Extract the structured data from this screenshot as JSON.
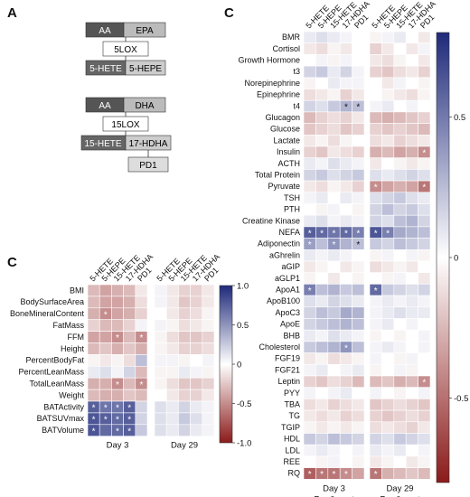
{
  "panel_labels": {
    "a": "A",
    "c_left": "C",
    "c_right": "C"
  },
  "pathways": {
    "lox5": {
      "inputs": [
        "AA",
        "EPA"
      ],
      "enzyme": "5LOX",
      "products": [
        "5-HETE",
        "5-HEPE"
      ]
    },
    "lox15": {
      "inputs": [
        "AA",
        "DHA"
      ],
      "enzyme": "15LOX",
      "products": [
        "15-HETE",
        "17-HDHA"
      ],
      "downstream": "PD1"
    }
  },
  "chart_data": [
    {
      "type": "heatmap",
      "columns": [
        "5-HETE",
        "5-HEPE",
        "15-HETE",
        "17-HDHA",
        "PD1",
        "5-HETE",
        "5-HEPE",
        "15-HETE",
        "17-HDHA",
        "PD1"
      ],
      "column_groups": [
        {
          "label": "Day 3",
          "span": 5
        },
        {
          "label": "Day 29",
          "span": 5
        }
      ],
      "rows": [
        "BMI",
        "BodySurfaceArea",
        "BoneMineralContent",
        "FatMass",
        "FFM",
        "Height",
        "PercentBodyFat",
        "PercentLeanMass",
        "TotalLeanMass",
        "Weight",
        "BATActivity",
        "BATSUVmax",
        "BATVolume"
      ],
      "values": [
        [
          -0.3,
          -0.4,
          -0.35,
          -0.3,
          -0.1,
          0.05,
          -0.1,
          -0.2,
          -0.2,
          -0.1
        ],
        [
          -0.3,
          -0.4,
          -0.4,
          -0.35,
          -0.15,
          0.05,
          -0.1,
          -0.25,
          -0.2,
          -0.1
        ],
        [
          -0.35,
          -0.5,
          -0.4,
          -0.35,
          -0.2,
          0.0,
          -0.1,
          -0.2,
          -0.15,
          -0.05
        ],
        [
          -0.2,
          -0.3,
          -0.3,
          -0.2,
          0.05,
          0.05,
          -0.05,
          -0.15,
          -0.1,
          -0.05
        ],
        [
          -0.4,
          -0.4,
          -0.5,
          -0.3,
          -0.5,
          -0.05,
          -0.15,
          -0.25,
          -0.25,
          -0.2
        ],
        [
          -0.3,
          -0.25,
          -0.35,
          -0.25,
          -0.35,
          -0.05,
          -0.1,
          -0.2,
          -0.2,
          -0.15
        ],
        [
          -0.05,
          -0.1,
          -0.05,
          -0.15,
          0.3,
          0.05,
          0.05,
          -0.05,
          0.0,
          0.05
        ],
        [
          0.1,
          0.15,
          0.05,
          0.2,
          -0.3,
          -0.05,
          -0.05,
          0.1,
          0.05,
          -0.05
        ],
        [
          -0.35,
          -0.35,
          -0.5,
          -0.3,
          -0.5,
          -0.05,
          -0.15,
          -0.25,
          -0.25,
          -0.2
        ],
        [
          -0.3,
          -0.35,
          -0.35,
          -0.25,
          -0.3,
          0.0,
          -0.1,
          -0.2,
          -0.2,
          -0.1
        ],
        [
          0.75,
          0.65,
          0.65,
          0.75,
          0.2,
          0.15,
          0.1,
          0.2,
          0.1,
          0.05
        ],
        [
          0.8,
          0.75,
          0.7,
          0.75,
          0.2,
          0.15,
          0.1,
          0.25,
          0.15,
          0.05
        ],
        [
          0.8,
          0.7,
          0.7,
          0.75,
          0.25,
          0.15,
          0.1,
          0.2,
          0.1,
          0.05
        ]
      ],
      "significant": [
        [
          2,
          1
        ],
        [
          4,
          2
        ],
        [
          4,
          4
        ],
        [
          8,
          2
        ],
        [
          8,
          4
        ],
        [
          10,
          0
        ],
        [
          10,
          1
        ],
        [
          10,
          2
        ],
        [
          10,
          3
        ],
        [
          11,
          0
        ],
        [
          11,
          1
        ],
        [
          11,
          2
        ],
        [
          11,
          3
        ],
        [
          12,
          0
        ],
        [
          12,
          2
        ],
        [
          12,
          3
        ]
      ],
      "significance_marker": "*",
      "colorbar": {
        "min": -1.0,
        "max": 1.0,
        "ticks": [
          "1.0",
          "0.5",
          "0",
          "-0.5",
          "-1.0"
        ]
      },
      "color_scale": {
        "negative": "#8b1a1a",
        "zero": "#ffffff",
        "positive": "#1f2a7a"
      }
    },
    {
      "type": "heatmap",
      "columns": [
        "5-HETE",
        "5-HEPE",
        "15-HETE",
        "17-HDHA",
        "PD1",
        "5-HETE",
        "5-HEPE",
        "15-HETE",
        "17-HDHA",
        "PD1"
      ],
      "column_groups": [
        {
          "label": "Day 3",
          "sublabel": "Pre & post",
          "span": 5
        },
        {
          "label": "Day 29",
          "sublabel": "Pre & post",
          "span": 5
        }
      ],
      "rows": [
        "BMR",
        "Cortisol",
        "Growth Hormone",
        "t3",
        "Norepinephrine",
        "Epinephrine",
        "t4",
        "Glucagon",
        "Glucose",
        "Lactate",
        "Insulin",
        "ACTH",
        "Total Protein",
        "Pyruvate",
        "TSH",
        "PTH",
        "Creatine Kinase",
        "NEFA",
        "Adiponectin",
        "aGhrelin",
        "aGIP",
        "aGLP1",
        "ApoA1",
        "ApoB100",
        "ApoC3",
        "ApoE",
        "BHB",
        "Cholesterol",
        "FGF19",
        "FGF21",
        "Leptin",
        "PYY",
        "TBA",
        "TG",
        "TGIP",
        "HDL",
        "LDL",
        "REE",
        "RQ"
      ],
      "values": [
        [
          0.1,
          0.15,
          0.1,
          0.05,
          0.0,
          -0.05,
          0.05,
          0.1,
          0.0,
          -0.1
        ],
        [
          -0.1,
          -0.15,
          -0.05,
          -0.1,
          0.0,
          -0.2,
          -0.1,
          0.0,
          -0.1,
          0.05
        ],
        [
          0.0,
          0.05,
          -0.05,
          0.05,
          0.0,
          -0.1,
          -0.15,
          -0.05,
          0.0,
          -0.1
        ],
        [
          0.2,
          0.25,
          0.1,
          0.2,
          0.05,
          -0.2,
          -0.25,
          -0.15,
          -0.1,
          -0.2
        ],
        [
          -0.05,
          0.0,
          0.1,
          0.05,
          0.05,
          0.0,
          -0.1,
          0.05,
          0.0,
          -0.05
        ],
        [
          -0.15,
          -0.1,
          -0.05,
          -0.2,
          -0.1,
          0.0,
          -0.05,
          -0.1,
          -0.15,
          -0.05
        ],
        [
          0.2,
          0.15,
          0.25,
          0.35,
          0.3,
          0.05,
          0.1,
          0.0,
          0.05,
          0.0
        ],
        [
          -0.3,
          -0.2,
          -0.15,
          -0.2,
          -0.1,
          -0.3,
          -0.35,
          -0.3,
          -0.25,
          -0.2
        ],
        [
          -0.25,
          -0.2,
          -0.15,
          -0.25,
          -0.2,
          -0.2,
          -0.25,
          -0.2,
          -0.25,
          -0.3
        ],
        [
          -0.1,
          -0.05,
          -0.15,
          -0.05,
          0.0,
          -0.15,
          -0.1,
          -0.2,
          -0.15,
          -0.1
        ],
        [
          -0.2,
          -0.25,
          -0.1,
          -0.15,
          -0.2,
          -0.35,
          -0.3,
          -0.4,
          -0.35,
          -0.5
        ],
        [
          0.1,
          0.05,
          0.15,
          0.1,
          0.05,
          -0.1,
          0.0,
          -0.05,
          -0.1,
          -0.05
        ],
        [
          0.2,
          0.25,
          0.15,
          0.2,
          0.25,
          0.15,
          0.1,
          0.15,
          0.2,
          0.15
        ],
        [
          -0.1,
          -0.15,
          -0.05,
          -0.1,
          -0.2,
          -0.5,
          -0.4,
          -0.35,
          -0.4,
          -0.6
        ],
        [
          0.05,
          0.1,
          0.0,
          0.1,
          0.05,
          0.15,
          0.2,
          0.25,
          0.15,
          0.1
        ],
        [
          0.0,
          -0.05,
          0.05,
          0.0,
          -0.05,
          0.2,
          0.3,
          0.2,
          0.25,
          0.15
        ],
        [
          0.1,
          0.15,
          0.05,
          0.1,
          0.05,
          0.2,
          0.15,
          0.3,
          0.35,
          0.2
        ],
        [
          0.75,
          0.7,
          0.65,
          0.7,
          0.6,
          0.8,
          0.6,
          0.4,
          0.35,
          0.3
        ],
        [
          0.45,
          0.3,
          0.5,
          0.35,
          0.3,
          0.25,
          0.2,
          0.3,
          0.25,
          0.2
        ],
        [
          0.1,
          0.05,
          0.1,
          0.05,
          0.0,
          -0.05,
          0.05,
          0.0,
          0.05,
          -0.05
        ],
        [
          -0.1,
          -0.05,
          0.0,
          -0.1,
          -0.05,
          -0.15,
          -0.1,
          -0.05,
          -0.1,
          0.0
        ],
        [
          -0.05,
          0.0,
          -0.1,
          0.0,
          -0.05,
          0.0,
          -0.05,
          0.05,
          0.0,
          -0.1
        ],
        [
          0.6,
          0.3,
          0.35,
          0.25,
          0.3,
          0.7,
          0.25,
          0.2,
          0.15,
          0.2
        ],
        [
          0.15,
          0.1,
          0.2,
          0.15,
          0.1,
          0.05,
          0.1,
          0.05,
          0.1,
          0.05
        ],
        [
          0.2,
          0.3,
          0.25,
          0.4,
          0.35,
          0.05,
          0.1,
          0.15,
          0.1,
          0.1
        ],
        [
          0.2,
          0.25,
          0.3,
          0.35,
          0.3,
          0.05,
          0.1,
          0.0,
          0.05,
          0.0
        ],
        [
          0.1,
          0.05,
          0.15,
          0.1,
          0.05,
          -0.05,
          0.0,
          -0.05,
          0.0,
          0.05
        ],
        [
          0.25,
          0.3,
          0.35,
          0.5,
          0.3,
          0.05,
          0.1,
          0.05,
          0.0,
          0.05
        ],
        [
          -0.1,
          -0.05,
          -0.15,
          -0.1,
          -0.05,
          0.05,
          0.0,
          -0.05,
          0.05,
          0.0
        ],
        [
          0.05,
          0.1,
          0.0,
          0.05,
          0.1,
          -0.05,
          0.0,
          0.05,
          -0.05,
          0.0
        ],
        [
          -0.2,
          -0.25,
          -0.15,
          -0.2,
          -0.3,
          -0.3,
          -0.25,
          -0.35,
          -0.3,
          -0.5
        ],
        [
          0.05,
          0.0,
          0.05,
          0.1,
          0.0,
          0.05,
          0.0,
          -0.05,
          0.0,
          0.05
        ],
        [
          -0.15,
          -0.1,
          -0.2,
          -0.15,
          -0.1,
          -0.25,
          -0.2,
          -0.15,
          -0.2,
          -0.25
        ],
        [
          -0.1,
          -0.15,
          -0.1,
          -0.2,
          -0.15,
          -0.2,
          -0.25,
          -0.2,
          -0.15,
          -0.2
        ],
        [
          -0.05,
          -0.1,
          -0.05,
          -0.1,
          -0.05,
          -0.15,
          -0.1,
          -0.15,
          -0.2,
          -0.1
        ],
        [
          0.25,
          0.2,
          0.3,
          0.25,
          0.2,
          0.2,
          0.15,
          0.25,
          0.2,
          0.15
        ],
        [
          0.05,
          0.1,
          0.05,
          0.0,
          0.05,
          0.1,
          0.05,
          0.1,
          0.0,
          0.05
        ],
        [
          0.0,
          -0.05,
          0.05,
          0.0,
          -0.05,
          -0.1,
          -0.05,
          0.0,
          -0.1,
          -0.05
        ],
        [
          -0.7,
          -0.6,
          -0.6,
          -0.5,
          -0.4,
          -0.6,
          -0.35,
          -0.3,
          -0.25,
          -0.3
        ]
      ],
      "significant": [
        [
          6,
          3
        ],
        [
          6,
          4
        ],
        [
          10,
          9
        ],
        [
          13,
          5
        ],
        [
          13,
          9
        ],
        [
          17,
          0
        ],
        [
          17,
          1
        ],
        [
          17,
          2
        ],
        [
          17,
          3
        ],
        [
          17,
          4
        ],
        [
          17,
          5
        ],
        [
          17,
          6
        ],
        [
          18,
          0
        ],
        [
          18,
          2
        ],
        [
          18,
          4
        ],
        [
          22,
          0
        ],
        [
          22,
          5
        ],
        [
          27,
          3
        ],
        [
          30,
          9
        ],
        [
          38,
          0
        ],
        [
          38,
          1
        ],
        [
          38,
          2
        ],
        [
          38,
          3
        ],
        [
          38,
          5
        ]
      ],
      "significance_marker": "*",
      "colorbar": {
        "min": -0.8,
        "max": 0.8,
        "ticks": [
          "0.5",
          "0",
          "-0.5"
        ]
      },
      "color_scale": {
        "negative": "#8b1a1a",
        "zero": "#ffffff",
        "positive": "#1f2a7a"
      }
    }
  ]
}
